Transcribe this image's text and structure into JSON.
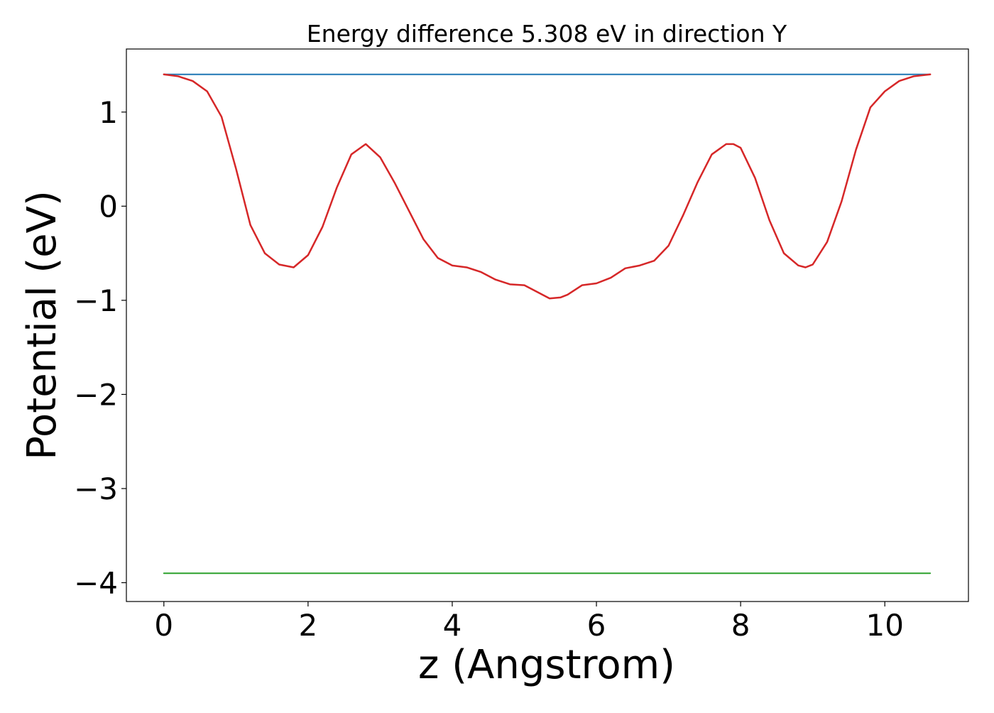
{
  "chart_data": {
    "type": "line",
    "title": "Energy difference 5.308 eV in direction Y",
    "xlabel": "z (Angstrom)",
    "ylabel": "Potential (eV)",
    "xlim": [
      -0.52,
      11.16
    ],
    "ylim": [
      -4.2,
      1.67
    ],
    "xticks": [
      0,
      2,
      4,
      6,
      8,
      10
    ],
    "yticks": [
      -4,
      -3,
      -2,
      -1,
      0,
      1
    ],
    "grid": false,
    "legend": "none",
    "series": [
      {
        "color": "#1f77b4",
        "width": 2,
        "x": [
          0,
          10.63
        ],
        "y": [
          1.4,
          1.4
        ]
      },
      {
        "color": "#2ca02c",
        "width": 2,
        "x": [
          0,
          10.63
        ],
        "y": [
          -3.9,
          -3.9
        ]
      },
      {
        "color": "#d62728",
        "width": 2.5,
        "x": [
          0,
          0.2,
          0.4,
          0.6,
          0.8,
          1.0,
          1.2,
          1.4,
          1.6,
          1.8,
          2.0,
          2.2,
          2.4,
          2.6,
          2.8,
          3.0,
          3.2,
          3.4,
          3.6,
          3.8,
          4.0,
          4.2,
          4.4,
          4.6,
          4.8,
          5.0,
          5.2,
          5.35,
          5.5,
          5.6,
          5.8,
          6.0,
          6.2,
          6.4,
          6.6,
          6.8,
          7.0,
          7.2,
          7.4,
          7.6,
          7.8,
          7.9,
          8.0,
          8.2,
          8.4,
          8.6,
          8.8,
          8.9,
          9.0,
          9.2,
          9.4,
          9.6,
          9.8,
          10.0,
          10.2,
          10.4,
          10.63
        ],
        "y": [
          1.4,
          1.38,
          1.33,
          1.22,
          0.95,
          0.4,
          -0.2,
          -0.5,
          -0.62,
          -0.65,
          -0.52,
          -0.22,
          0.2,
          0.55,
          0.66,
          0.52,
          0.25,
          -0.05,
          -0.35,
          -0.55,
          -0.63,
          -0.65,
          -0.7,
          -0.78,
          -0.83,
          -0.84,
          -0.92,
          -0.98,
          -0.97,
          -0.94,
          -0.84,
          -0.82,
          -0.76,
          -0.66,
          -0.63,
          -0.58,
          -0.42,
          -0.1,
          0.25,
          0.55,
          0.66,
          0.66,
          0.62,
          0.3,
          -0.15,
          -0.5,
          -0.63,
          -0.65,
          -0.62,
          -0.38,
          0.05,
          0.6,
          1.05,
          1.22,
          1.33,
          1.38,
          1.4
        ]
      }
    ]
  }
}
